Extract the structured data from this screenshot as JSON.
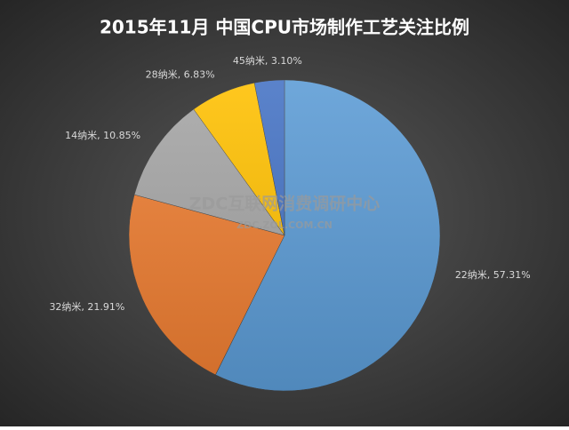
{
  "chart_data": {
    "type": "pie",
    "title": "2015年11月  中国CPU市场制作工艺关注比例",
    "watermark": [
      "ZDC互联网消费调研中心",
      "ZDC.ZOL.COM.CN"
    ],
    "values": [
      57.31,
      21.91,
      10.85,
      6.83,
      3.1
    ],
    "value_labels": [
      "22纳米, 57.31%",
      "32纳米, 21.91%",
      "14纳米, 10.85%",
      "28纳米, 6.83%",
      "45纳米, 3.10%"
    ],
    "colors": [
      "#5b9bd5",
      "#ed7d31",
      "#a5a5a5",
      "#ffc000",
      "#4472c4"
    ]
  }
}
